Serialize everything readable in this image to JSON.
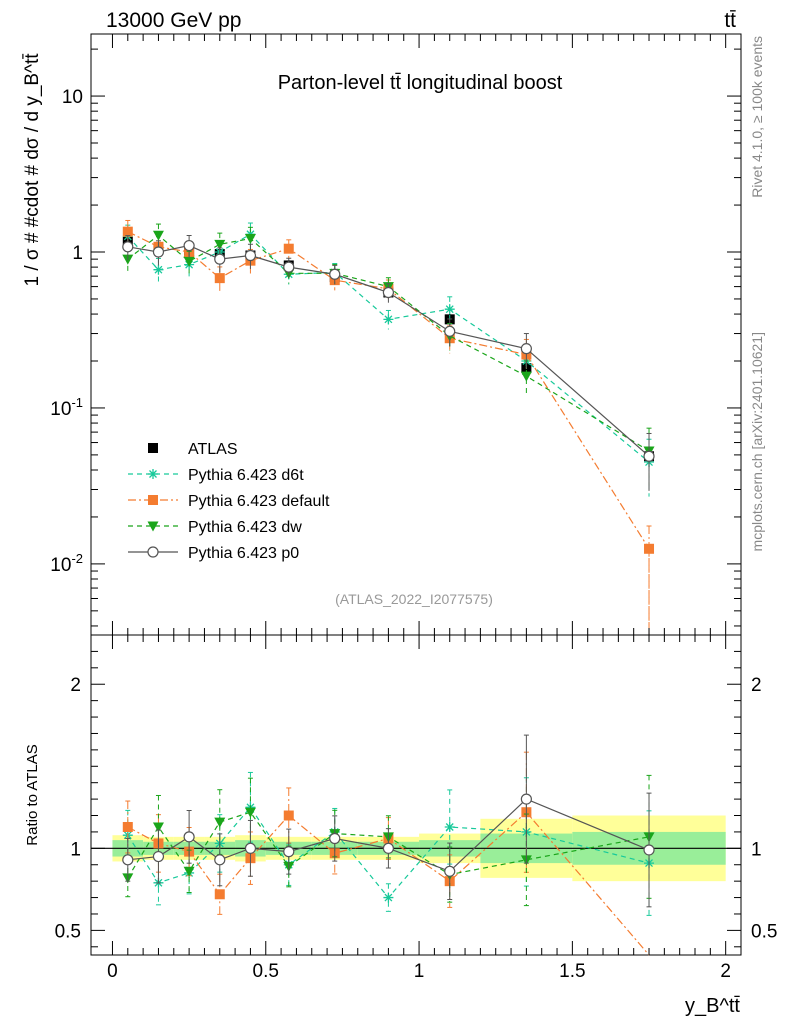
{
  "header": {
    "left": "13000 GeV pp",
    "right": "tt̄"
  },
  "side_labels": {
    "rivet": "Rivet 4.1.0, ≥ 100k events",
    "mcplots": "mcplots.cern.ch [arXiv:2401.10621]"
  },
  "chart_data": [
    {
      "type": "line",
      "panel": "main",
      "title": "Parton-level tt̄ longitudinal boost",
      "analysis_tag": "(ATLAS_2022_I2077575)",
      "ylabel": "1 / σ # #cdot # dσ / d y_B^tt̄",
      "yscale": "log",
      "ylim": [
        0.0035,
        25
      ],
      "xlim": [
        -0.07,
        2.05
      ],
      "ytick_labels": [
        "10",
        "1",
        "10^-1",
        "10^-2"
      ],
      "legend_placement": "middle-left",
      "x": [
        0.05,
        0.15,
        0.25,
        0.35,
        0.45,
        0.575,
        0.725,
        0.9,
        1.1,
        1.35,
        1.75
      ],
      "series": [
        {
          "name": "ATLAS",
          "color": "#000000",
          "marker": "square",
          "values": [
            1.16,
            1.05,
            1.02,
            0.97,
            0.95,
            0.82,
            0.69,
            0.55,
            0.37,
            0.18,
            0.049
          ]
        },
        {
          "name": "Pythia 6.423 d6t",
          "color": "#17c99a",
          "marker": "star",
          "line": "dashed",
          "values": [
            1.26,
            0.77,
            0.83,
            1.0,
            1.3,
            0.72,
            0.74,
            0.37,
            0.43,
            0.2,
            0.045
          ]
        },
        {
          "name": "Pythia 6.423 default",
          "color": "#f47c30",
          "marker": "square",
          "line": "dashdot",
          "values": [
            1.35,
            1.08,
            1.0,
            0.68,
            0.88,
            1.05,
            0.66,
            0.58,
            0.28,
            0.22,
            0.0125
          ]
        },
        {
          "name": "Pythia 6.423 dw",
          "color": "#1aa51a",
          "marker": "triangle-down",
          "line": "dashed",
          "values": [
            0.9,
            1.28,
            0.87,
            1.12,
            1.22,
            0.73,
            0.73,
            0.6,
            0.29,
            0.16,
            0.053
          ]
        },
        {
          "name": "Pythia 6.423 p0",
          "color": "#555555",
          "marker": "circle-open",
          "line": "solid",
          "values": [
            1.08,
            1.0,
            1.1,
            0.9,
            0.95,
            0.8,
            0.72,
            0.55,
            0.31,
            0.24,
            0.049
          ]
        }
      ]
    },
    {
      "type": "line",
      "panel": "ratio",
      "ylabel": "Ratio to ATLAS",
      "xlabel": "y_B^tt̄",
      "ylim": [
        0.35,
        2.3
      ],
      "xlim": [
        -0.07,
        2.05
      ],
      "ytick_labels": [
        "2",
        "1",
        "0.5"
      ],
      "xtick_labels": [
        "0",
        "0.5",
        "1",
        "1.5",
        "2"
      ],
      "band_edges": [
        0,
        0.1,
        0.2,
        0.3,
        0.4,
        0.5,
        0.65,
        0.8,
        1.0,
        1.2,
        1.5,
        2.0
      ],
      "band_inner": [
        0.05,
        0.04,
        0.04,
        0.04,
        0.05,
        0.04,
        0.04,
        0.04,
        0.05,
        0.09,
        0.1
      ],
      "band_outer": [
        0.08,
        0.07,
        0.07,
        0.07,
        0.08,
        0.07,
        0.07,
        0.07,
        0.09,
        0.18,
        0.2
      ],
      "x": [
        0.05,
        0.15,
        0.25,
        0.35,
        0.45,
        0.575,
        0.725,
        0.9,
        1.1,
        1.35,
        1.75
      ],
      "series": [
        {
          "name": "Pythia 6.423 d6t",
          "color": "#17c99a",
          "values": [
            1.08,
            0.79,
            0.85,
            1.03,
            1.25,
            0.9,
            1.1,
            0.7,
            1.13,
            1.1,
            0.91
          ]
        },
        {
          "name": "Pythia 6.423 default",
          "color": "#f47c30",
          "values": [
            1.13,
            1.03,
            0.98,
            0.72,
            0.94,
            1.2,
            0.97,
            1.06,
            0.8,
            1.22,
            0.26
          ]
        },
        {
          "name": "Pythia 6.423 dw",
          "color": "#1aa51a",
          "values": [
            0.82,
            1.13,
            0.86,
            1.16,
            1.22,
            0.89,
            1.09,
            1.07,
            0.84,
            0.93,
            1.07
          ]
        },
        {
          "name": "Pythia 6.423 p0",
          "color": "#555555",
          "values": [
            0.93,
            0.95,
            1.07,
            0.93,
            1.0,
            0.98,
            1.06,
            1.0,
            0.86,
            1.3,
            0.99
          ]
        }
      ]
    }
  ]
}
